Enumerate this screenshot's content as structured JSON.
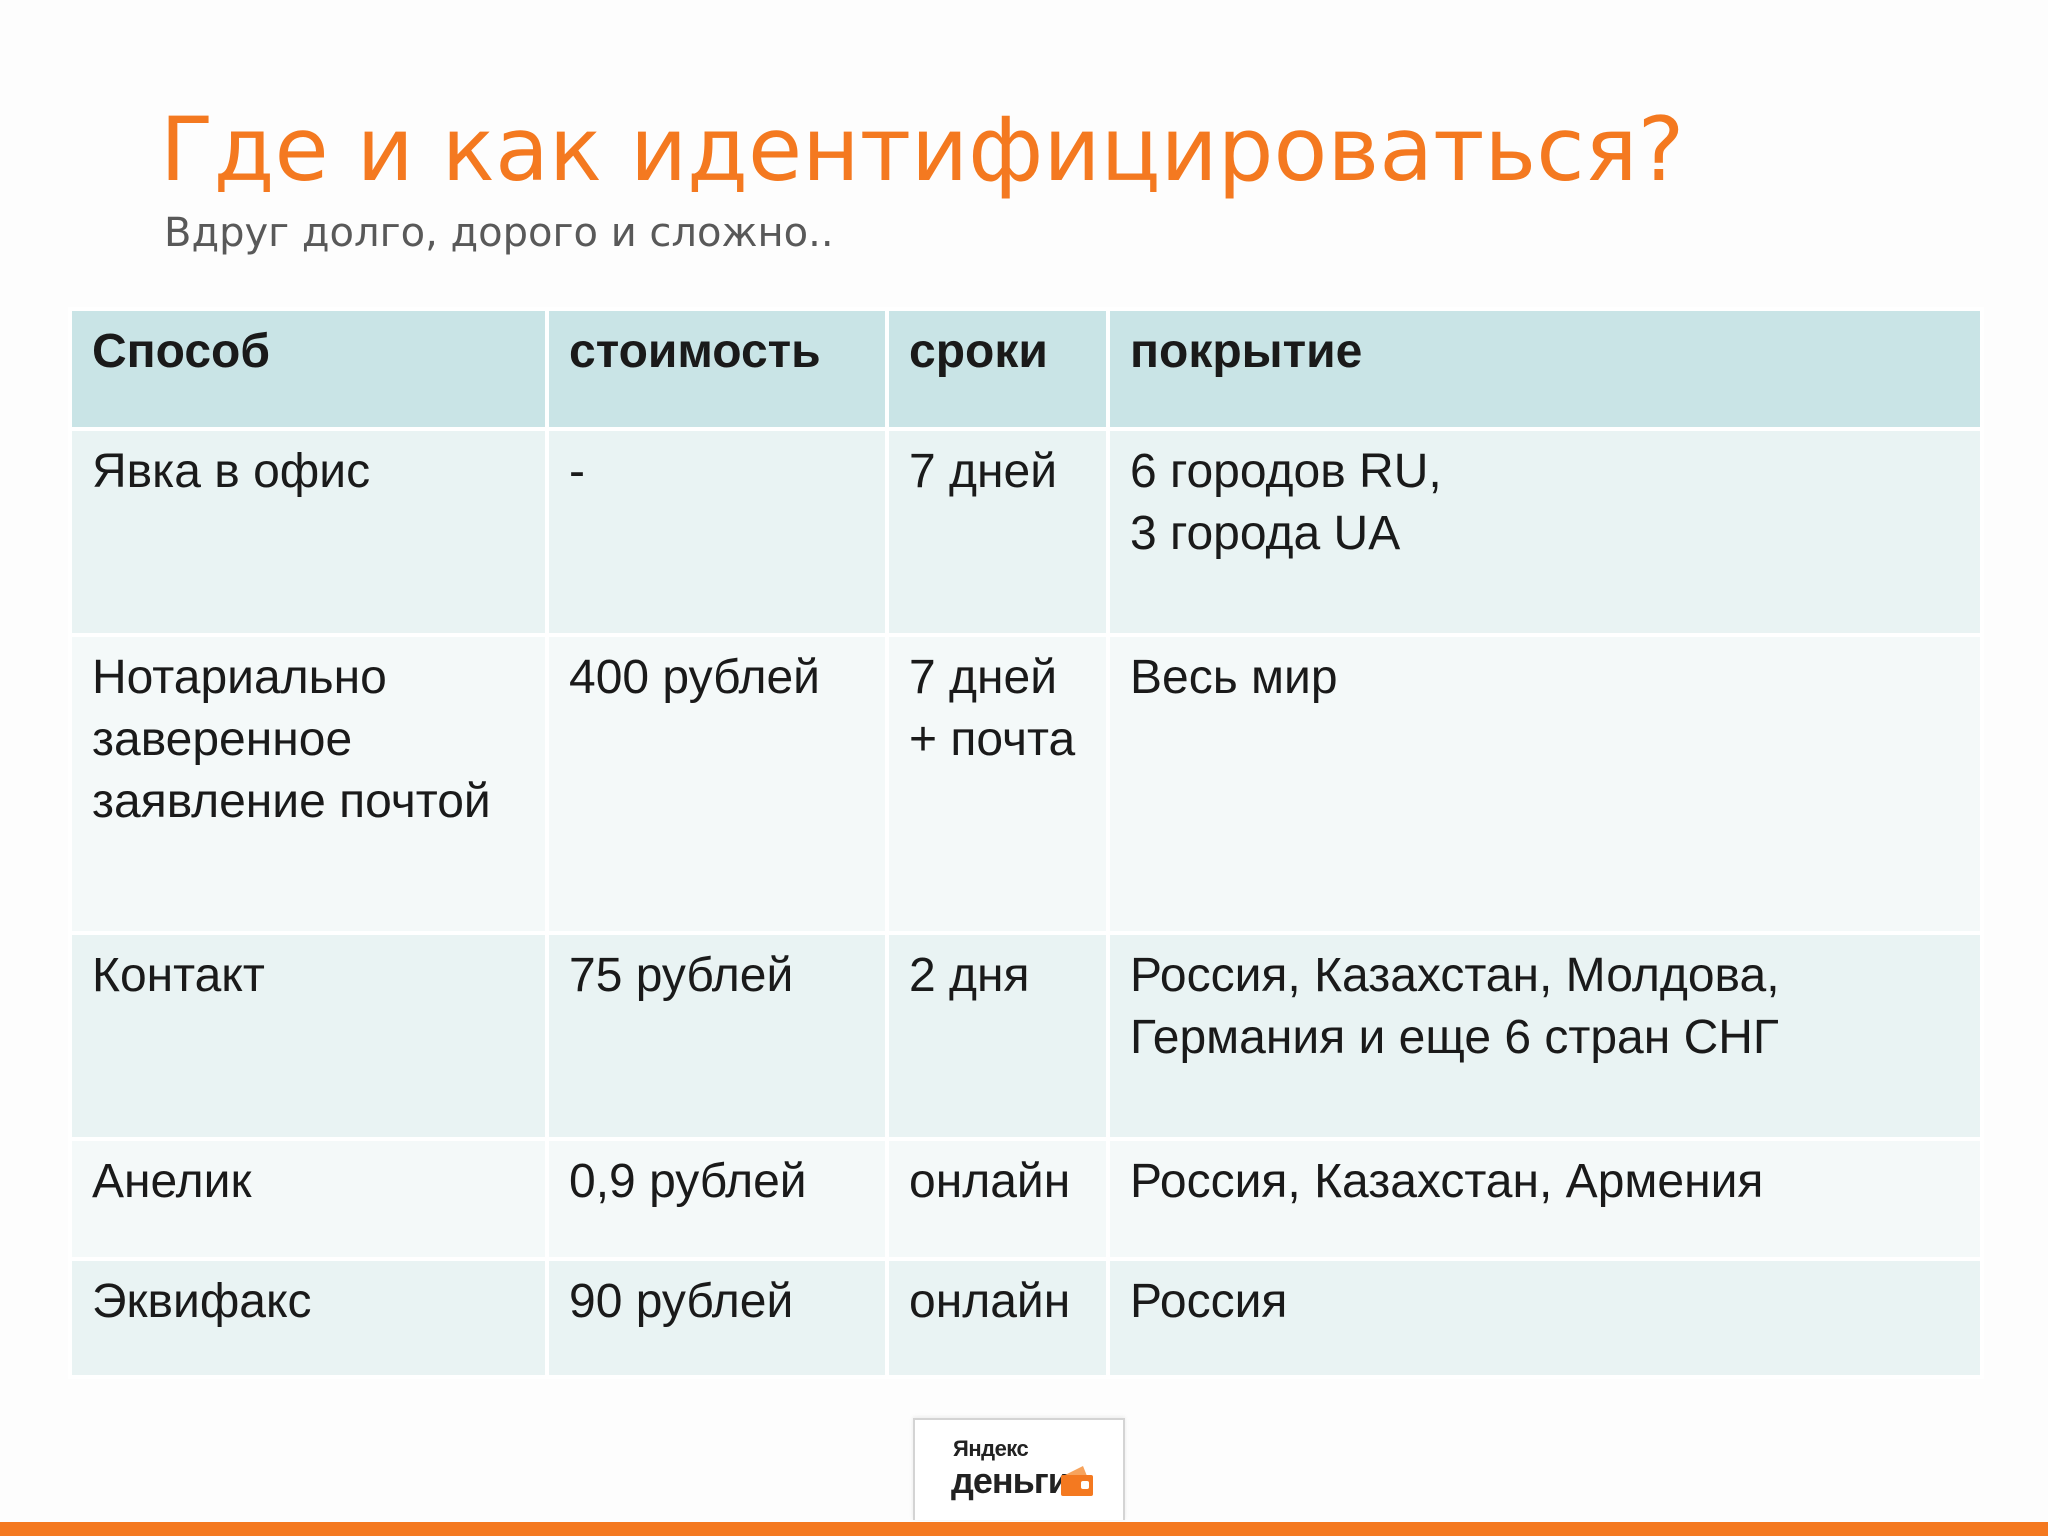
{
  "slide": {
    "title": "Где и как идентифицироваться?",
    "subtitle": "Вдруг долго, дорого и сложно.."
  },
  "table": {
    "headers": [
      "Способ",
      "стоимость",
      "сроки",
      "покрытие"
    ],
    "rows": [
      {
        "method": [
          "Явка в офис"
        ],
        "cost": [
          "-"
        ],
        "term": [
          "7 дней"
        ],
        "coverage": [
          "6 городов RU,",
          "3 города UA"
        ]
      },
      {
        "method": [
          "Нотариально",
          "заверенное",
          "заявление почтой"
        ],
        "cost": [
          "400 рублей"
        ],
        "term": [
          "7 дней",
          "+ почта"
        ],
        "coverage": [
          "Весь мир"
        ]
      },
      {
        "method": [
          "Контакт"
        ],
        "cost": [
          "75 рублей"
        ],
        "term": [
          "2 дня"
        ],
        "coverage": [
          "Россия, Казахстан, Молдова,",
          "Германия и еще 6 стран СНГ"
        ]
      },
      {
        "method": [
          "Анелик"
        ],
        "cost": [
          "0,9 рублей"
        ],
        "term": [
          "онлайн"
        ],
        "coverage": [
          "Россия, Казахстан, Армения"
        ]
      },
      {
        "method": [
          "Эквифакс"
        ],
        "cost": [
          "90 рублей"
        ],
        "term": [
          "онлайн"
        ],
        "coverage": [
          "Россия"
        ]
      }
    ]
  },
  "logo": {
    "top_text": "Яндекс",
    "main_text": "деньги",
    "icon": "wallet-icon"
  },
  "colors": {
    "accent": "#f47920",
    "header_bg": "#c9e4e6",
    "row_odd_bg": "#e9f3f3",
    "row_even_bg": "#f4f9f9",
    "subtitle": "#595959",
    "text": "#1a1a1a"
  }
}
